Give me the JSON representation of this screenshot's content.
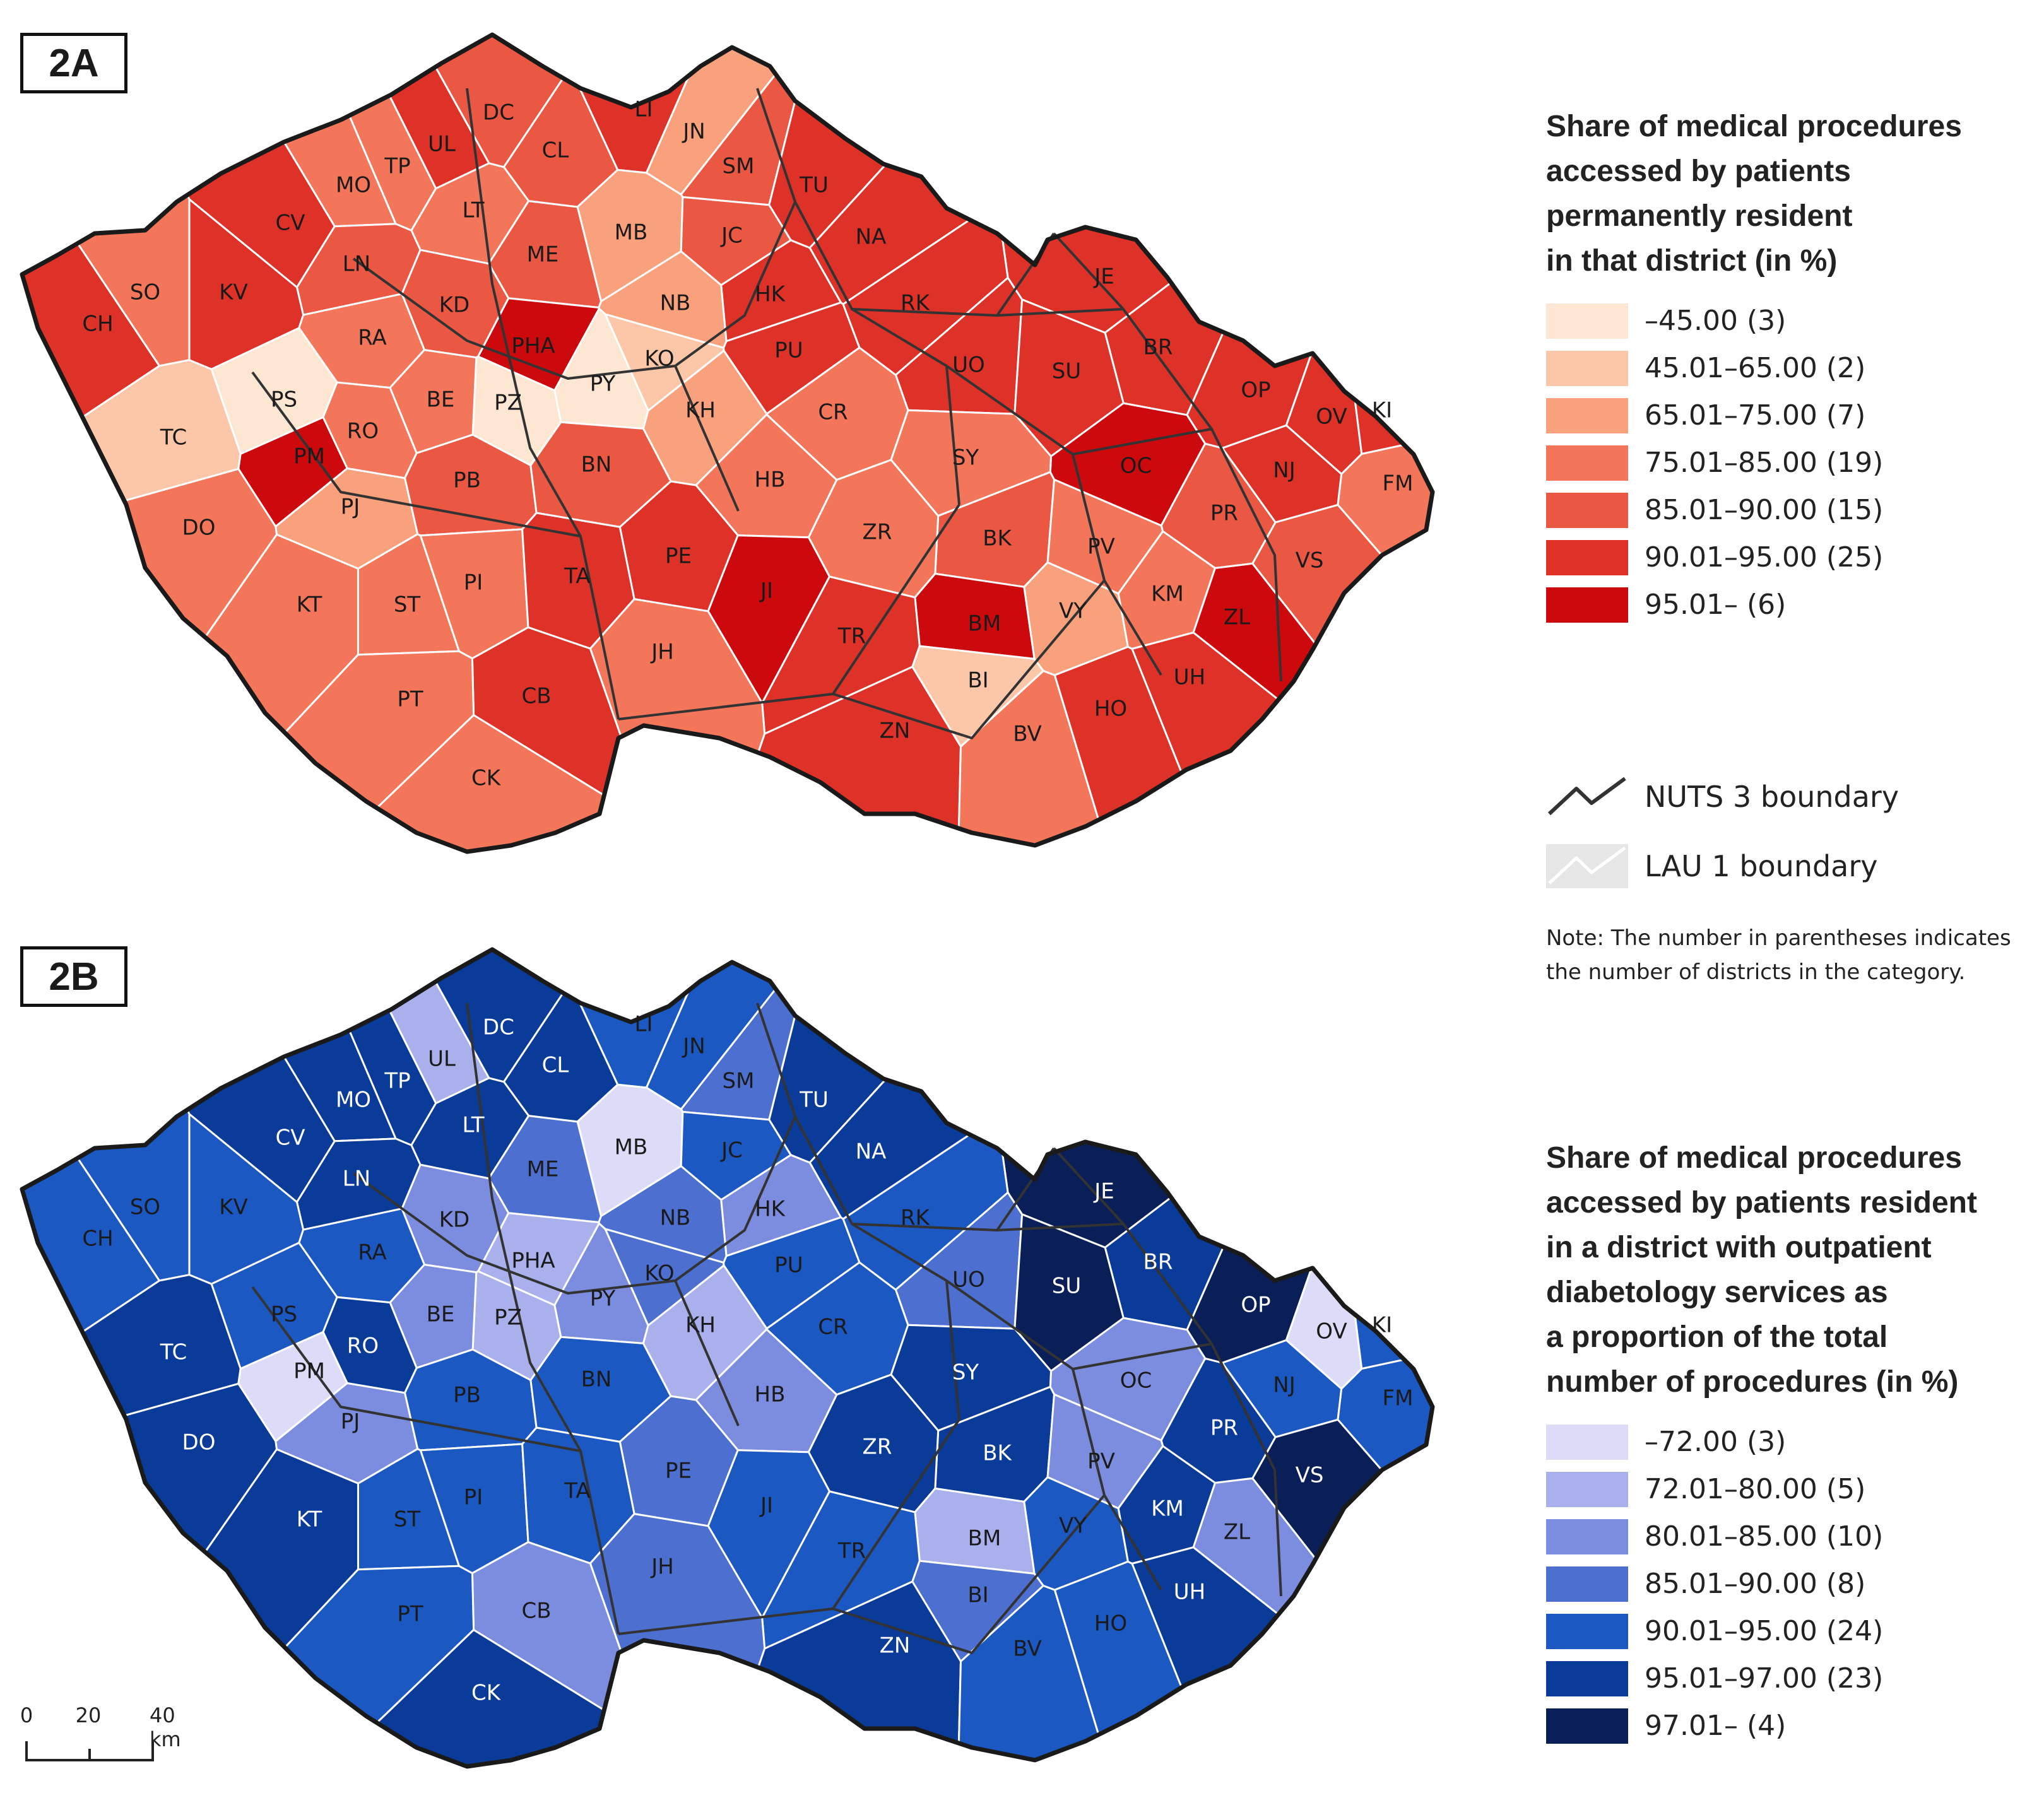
{
  "panels": {
    "a": {
      "tag": "2A"
    },
    "b": {
      "tag": "2B"
    }
  },
  "district_codes": [
    "DC",
    "LI",
    "JN",
    "UL",
    "CL",
    "TP",
    "SM",
    "MO",
    "TU",
    "LT",
    "MB",
    "CV",
    "JC",
    "NA",
    "ME",
    "LN",
    "SO",
    "KV",
    "JE",
    "KD",
    "NB",
    "HK",
    "RK",
    "CH",
    "RA",
    "PHA",
    "BR",
    "KO",
    "PU",
    "PY",
    "UO",
    "SU",
    "PS",
    "PZ",
    "OP",
    "BE",
    "RO",
    "OV",
    "KI",
    "TC",
    "KH",
    "CR",
    "PM",
    "OC",
    "NJ",
    "FM",
    "SY",
    "PB",
    "BN",
    "HB",
    "PJ",
    "PR",
    "DO",
    "BK",
    "ZR",
    "PE",
    "PV",
    "VS",
    "PI",
    "TA",
    "KM",
    "JI",
    "KT",
    "ST",
    "BM",
    "VY",
    "ZL",
    "TR",
    "JH",
    "UH",
    "BI",
    "CB",
    "HO",
    "PT",
    "ZN",
    "BV",
    "CK"
  ],
  "legend_a": {
    "title": "Share of medical procedures\naccessed by patients\npermanently resident\nin that district (in %)",
    "classes": [
      {
        "label": "–45.00 (3)",
        "color": "#fde6d2"
      },
      {
        "label": "45.01–65.00 (2)",
        "color": "#fcc7a8"
      },
      {
        "label": "65.01–75.00 (7)",
        "color": "#f9a07d"
      },
      {
        "label": "75.01–85.00 (19)",
        "color": "#f3765a"
      },
      {
        "label": "85.01–90.00 (15)",
        "color": "#ea5843"
      },
      {
        "label": "90.01–95.00 (25)",
        "color": "#de3128"
      },
      {
        "label": "95.01– (6)",
        "color": "#cc0a0e"
      }
    ]
  },
  "legend_b": {
    "title": "Share of medical procedures\naccessed by patients resident\nin a district with outpatient\ndiabetology services as\na proportion of the total\nnumber of procedures (in %)",
    "classes": [
      {
        "label": "–72.00 (3)",
        "color": "#dcdcf8"
      },
      {
        "label": "72.01–80.00 (5)",
        "color": "#a9b0ec"
      },
      {
        "label": "80.01–85.00 (10)",
        "color": "#7c8ddf"
      },
      {
        "label": "85.01–90.00 (8)",
        "color": "#4c6fd0"
      },
      {
        "label": "90.01–95.00 (24)",
        "color": "#1c58c2"
      },
      {
        "label": "95.01–97.00 (23)",
        "color": "#0b3b98"
      },
      {
        "label": "97.01– (4)",
        "color": "#0a1f58"
      }
    ]
  },
  "boundaries": {
    "nuts": "NUTS 3 boundary",
    "lau": "LAU 1 boundary"
  },
  "note": "Note: The number in parentheses indicates\nthe number of districts in the category.",
  "scale": {
    "ticks": [
      "0",
      "20",
      "40 km"
    ]
  }
}
